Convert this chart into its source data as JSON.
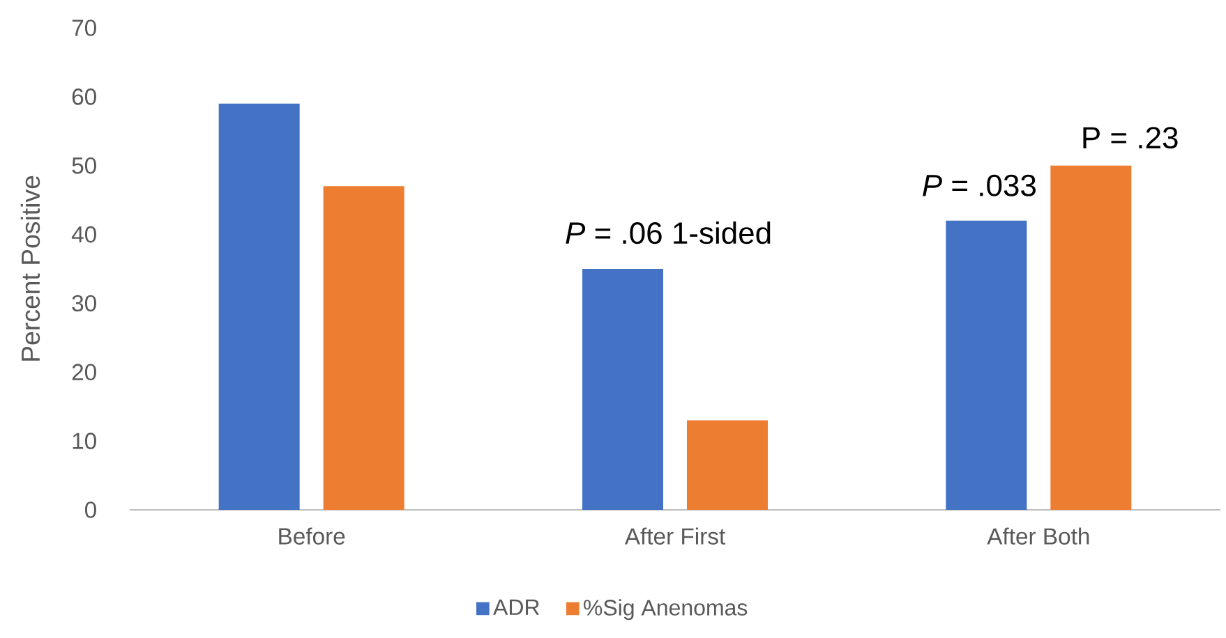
{
  "chart_data": {
    "type": "bar",
    "ylabel": "Percent Positive",
    "categories": [
      "Before",
      "After First",
      "After Both"
    ],
    "series": [
      {
        "name": "ADR",
        "color": "#4472c4",
        "values": [
          59,
          35,
          42
        ]
      },
      {
        "name": "%Sig Anenomas",
        "color": "#ed7d31",
        "values": [
          47,
          13,
          50
        ]
      }
    ],
    "ylim": [
      0,
      70
    ],
    "yticks": [
      0,
      10,
      20,
      30,
      40,
      50,
      60,
      70
    ],
    "legend": "bottom",
    "annotations": [
      "*P* = .06 1-sided",
      "*P* = .033",
      "P = .23"
    ]
  }
}
